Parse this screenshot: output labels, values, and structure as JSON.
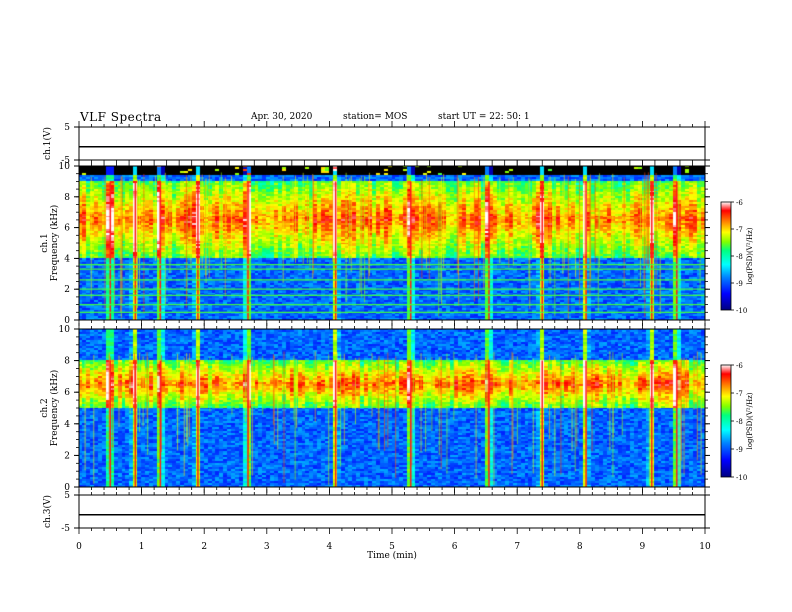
{
  "header": {
    "title": "VLF Spectra",
    "date": "Apr. 30, 2020",
    "station": "station= MOS",
    "start": "start  UT  =    22: 50: 1"
  },
  "colors": {
    "colormap": [
      "#000080",
      "#0000ff",
      "#0080ff",
      "#00ffff",
      "#00ff80",
      "#80ff00",
      "#ffff00",
      "#ff8000",
      "#ff0000",
      "#ffffff"
    ]
  },
  "chart_data": [
    {
      "type": "line",
      "panel": "ch1_voltage",
      "ylabel": "ch.1(V)",
      "ylim": [
        -5,
        5
      ],
      "yticks": [
        "5",
        "-5"
      ],
      "x": [
        0,
        10
      ],
      "values": [
        -1,
        -1
      ]
    },
    {
      "type": "heatmap",
      "panel": "ch1_spectrogram",
      "ylabel_lines": [
        "ch.1",
        "Frequency (kHz)"
      ],
      "ylim": [
        0,
        10
      ],
      "yticks": [
        "0",
        "2",
        "4",
        "6",
        "8",
        "10"
      ],
      "colorbar": {
        "label": "log(PSD)(V²/Hz)",
        "ticks": [
          "-6",
          "-7",
          "-8",
          "-9",
          "-10"
        ],
        "range": [
          -10,
          -6
        ]
      },
      "emission_band_khz": [
        4,
        9
      ],
      "fixed_lines_khz": [
        0.5,
        1.0,
        1.6,
        2.0,
        2.6,
        3.3,
        3.6
      ],
      "burst_times_min": [
        0.5,
        0.9,
        1.3,
        1.9,
        2.7,
        4.1,
        5.3,
        6.55,
        7.4,
        8.1,
        9.15,
        9.55
      ]
    },
    {
      "type": "heatmap",
      "panel": "ch2_spectrogram",
      "ylabel_lines": [
        "ch.2",
        "Frequency (kHz)"
      ],
      "ylim": [
        0,
        10
      ],
      "yticks": [
        "0",
        "2",
        "4",
        "6",
        "8",
        "10"
      ],
      "colorbar": {
        "label": "log(PSD)(V²/Hz)",
        "ticks": [
          "-6",
          "-7",
          "-8",
          "-9",
          "-10"
        ],
        "range": [
          -10,
          -6
        ]
      },
      "emission_band_khz": [
        5,
        8
      ],
      "burst_times_min": [
        0.5,
        0.9,
        1.3,
        1.9,
        2.7,
        4.1,
        5.3,
        6.55,
        7.4,
        8.1,
        9.15,
        9.55
      ]
    },
    {
      "type": "line",
      "panel": "ch3_voltage",
      "ylabel": "ch.3(V)",
      "ylim": [
        -5,
        5
      ],
      "yticks": [
        "5",
        "-5"
      ],
      "x": [
        0,
        10
      ],
      "values": [
        -1,
        -1
      ]
    }
  ],
  "xaxis": {
    "label": "Time (min)",
    "ticks": [
      "0",
      "1",
      "2",
      "3",
      "4",
      "5",
      "6",
      "7",
      "8",
      "9",
      "10"
    ],
    "range": [
      0,
      10
    ]
  }
}
